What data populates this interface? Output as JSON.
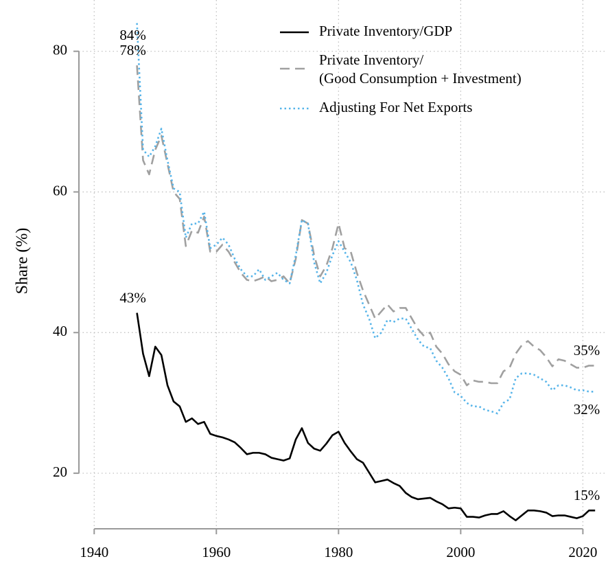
{
  "chart_data": {
    "type": "line",
    "y_label": "Share (%)",
    "x": [
      1947,
      1948,
      1949,
      1950,
      1951,
      1952,
      1953,
      1954,
      1955,
      1956,
      1957,
      1958,
      1959,
      1960,
      1961,
      1962,
      1963,
      1964,
      1965,
      1966,
      1967,
      1968,
      1969,
      1970,
      1971,
      1972,
      1973,
      1974,
      1975,
      1976,
      1977,
      1978,
      1979,
      1980,
      1981,
      1982,
      1983,
      1984,
      1985,
      1986,
      1987,
      1988,
      1989,
      1990,
      1991,
      1992,
      1993,
      1994,
      1995,
      1996,
      1997,
      1998,
      1999,
      2000,
      2001,
      2002,
      2003,
      2004,
      2005,
      2006,
      2007,
      2008,
      2009,
      2010,
      2011,
      2012,
      2013,
      2014,
      2015,
      2016,
      2017,
      2018,
      2019,
      2020,
      2021,
      2022
    ],
    "series": [
      {
        "name": "Private Inventory/GDP",
        "color": "#000000",
        "dash": "solid",
        "values": [
          42.8,
          37,
          33.8,
          38,
          36.8,
          32.5,
          30.2,
          29.5,
          27.3,
          27.8,
          27,
          27.3,
          25.6,
          25.3,
          25.1,
          24.8,
          24.4,
          23.6,
          22.7,
          22.9,
          22.9,
          22.7,
          22.2,
          22.0,
          21.8,
          22.1,
          24.8,
          26.4,
          24.3,
          23.5,
          23.2,
          24.2,
          25.4,
          25.9,
          24.3,
          23.1,
          22.0,
          21.5,
          20.1,
          18.7,
          18.9,
          19.1,
          18.6,
          18.2,
          17.2,
          16.6,
          16.3,
          16.4,
          16.5,
          16.0,
          15.6,
          15.0,
          15.1,
          15.0,
          13.8,
          13.8,
          13.7,
          14.0,
          14.2,
          14.2,
          14.6,
          13.9,
          13.3,
          14.0,
          14.7,
          14.7,
          14.6,
          14.4,
          13.9,
          14.0,
          14.0,
          13.8,
          13.6,
          13.9,
          14.7,
          14.7
        ],
        "value_labels": [
          "43%",
          null,
          null,
          null,
          null,
          null,
          null,
          null,
          null,
          null,
          null,
          null,
          null,
          null,
          null,
          null,
          null,
          null,
          null,
          null,
          null,
          null,
          null,
          null,
          null,
          null,
          null,
          null,
          null,
          null,
          null,
          null,
          null,
          null,
          null,
          null,
          null,
          null,
          null,
          null,
          null,
          null,
          null,
          null,
          null,
          null,
          null,
          null,
          null,
          null,
          null,
          null,
          null,
          null,
          null,
          null,
          null,
          null,
          null,
          null,
          null,
          null,
          null,
          null,
          null,
          null,
          null,
          null,
          null,
          null,
          null,
          null,
          null,
          null,
          null,
          "15%"
        ]
      },
      {
        "name": "Private Inventory/\n(Good Consumption + Investment)",
        "color": "#a0a0a0",
        "dash": "dashed",
        "values": [
          78,
          64.5,
          62.5,
          66,
          68,
          64,
          60,
          59,
          52.3,
          54.5,
          54.2,
          56.5,
          51.5,
          51.5,
          52.5,
          51.5,
          50,
          48.5,
          47.5,
          47.3,
          47.6,
          48,
          47.3,
          47.5,
          48,
          47,
          50.5,
          56,
          55.5,
          51,
          48,
          49.5,
          52,
          55.5,
          52,
          51.5,
          48.5,
          46,
          44,
          42,
          43,
          44,
          43,
          43.5,
          43.5,
          42,
          40.5,
          39.5,
          40,
          38,
          37,
          35.5,
          34.5,
          34,
          32.5,
          33.2,
          33,
          33,
          32.8,
          32.8,
          34.5,
          35,
          37,
          38.2,
          38.8,
          38,
          37.5,
          36.5,
          35.2,
          36.2,
          36,
          35.5,
          35,
          35,
          35.3,
          35.3
        ],
        "value_labels": [
          "78%",
          null,
          null,
          null,
          null,
          null,
          null,
          null,
          null,
          null,
          null,
          null,
          null,
          null,
          null,
          null,
          null,
          null,
          null,
          null,
          null,
          null,
          null,
          null,
          null,
          null,
          null,
          null,
          null,
          null,
          null,
          null,
          null,
          null,
          null,
          null,
          null,
          null,
          null,
          null,
          null,
          null,
          null,
          null,
          null,
          null,
          null,
          null,
          null,
          null,
          null,
          null,
          null,
          null,
          null,
          null,
          null,
          null,
          null,
          null,
          null,
          null,
          null,
          null,
          null,
          null,
          null,
          null,
          null,
          null,
          null,
          null,
          null,
          null,
          null,
          "35%"
        ]
      },
      {
        "name": "Adjusting For Net Exports",
        "color": "#56b4e9",
        "dash": "dotted",
        "values": [
          84,
          66,
          65,
          66.5,
          69,
          64.5,
          60.5,
          60,
          53.5,
          55.5,
          55.5,
          57.2,
          52,
          52.5,
          53.5,
          52.5,
          50.5,
          49,
          48,
          48,
          49,
          47.5,
          48,
          48.5,
          47.5,
          47,
          51,
          56,
          55.5,
          50,
          47,
          48.5,
          51,
          53,
          51.5,
          50,
          47.5,
          44,
          42,
          39.2,
          40,
          41.8,
          41.5,
          42,
          42,
          40.5,
          39,
          38,
          37.8,
          36,
          35,
          33.5,
          31.5,
          31,
          30,
          29.5,
          29.5,
          29,
          28.8,
          28.5,
          30,
          30.5,
          33.5,
          34.2,
          34.2,
          34,
          33.5,
          33,
          31.8,
          32.5,
          32.5,
          32.2,
          31.8,
          31.8,
          31.6,
          31.6
        ],
        "value_labels": [
          "84%",
          null,
          null,
          null,
          null,
          null,
          null,
          null,
          null,
          null,
          null,
          null,
          null,
          null,
          null,
          null,
          null,
          null,
          null,
          null,
          null,
          null,
          null,
          null,
          null,
          null,
          null,
          null,
          null,
          null,
          null,
          null,
          null,
          null,
          null,
          null,
          null,
          null,
          null,
          null,
          null,
          null,
          null,
          null,
          null,
          null,
          null,
          null,
          null,
          null,
          null,
          null,
          null,
          null,
          null,
          null,
          null,
          null,
          null,
          null,
          null,
          null,
          null,
          null,
          null,
          null,
          null,
          null,
          null,
          null,
          null,
          null,
          null,
          null,
          null,
          "32%"
        ]
      }
    ],
    "xlim": [
      1937.5,
      2024
    ],
    "xticks": [
      1940,
      1960,
      1980,
      2000,
      2020
    ],
    "ylim": [
      12,
      87
    ],
    "yticks": [
      20,
      40,
      60,
      80
    ],
    "grid": true,
    "legend": "top-right"
  }
}
